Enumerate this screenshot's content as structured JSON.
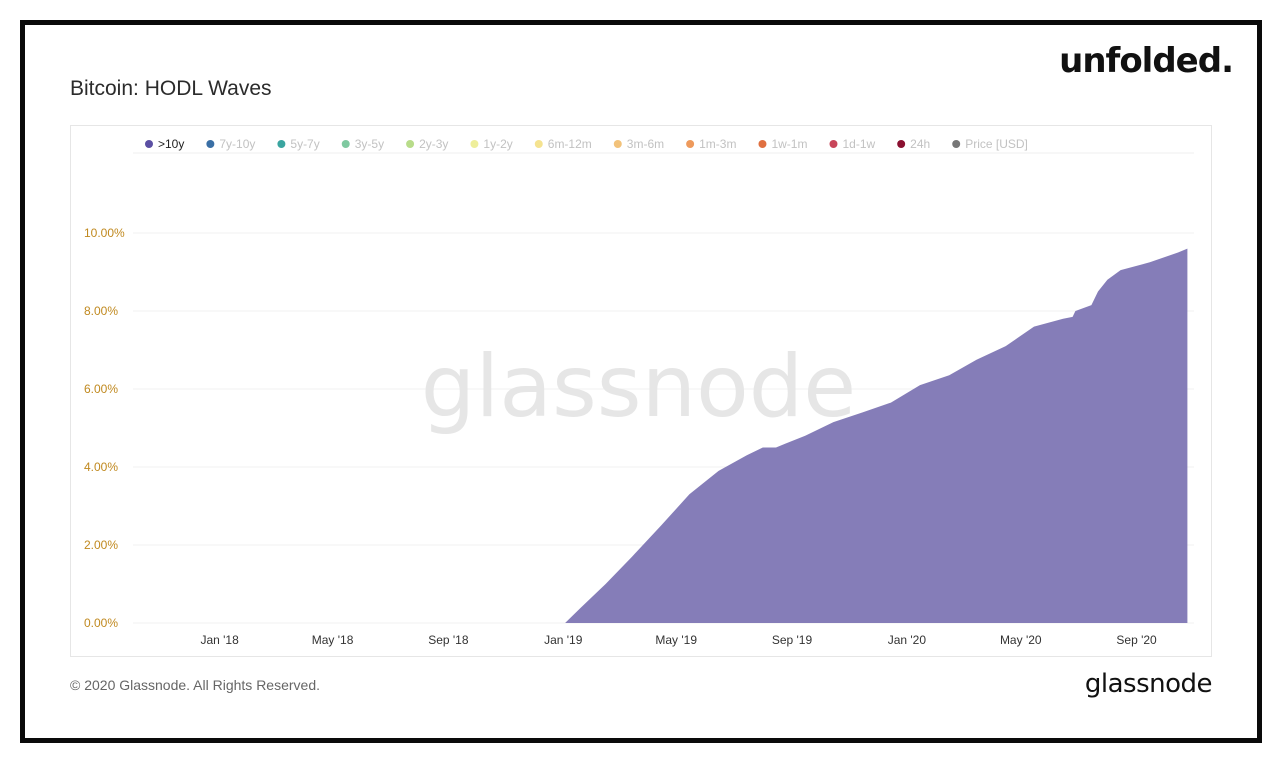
{
  "header": {
    "brand": "unfolded."
  },
  "chart_data": {
    "type": "area",
    "title": "Bitcoin: HODL Waves",
    "watermark": "glassnode",
    "legend": [
      {
        "name": ">10y",
        "color": "#5b4fa3",
        "active": true
      },
      {
        "name": "7y-10y",
        "color": "#3a6fa5",
        "active": false
      },
      {
        "name": "5y-7y",
        "color": "#3aa5a0",
        "active": false
      },
      {
        "name": "3y-5y",
        "color": "#7fc9a0",
        "active": false
      },
      {
        "name": "2y-3y",
        "color": "#b8dc8a",
        "active": false
      },
      {
        "name": "1y-2y",
        "color": "#eeee9a",
        "active": false
      },
      {
        "name": "6m-12m",
        "color": "#f5e390",
        "active": false
      },
      {
        "name": "3m-6m",
        "color": "#f2c27a",
        "active": false
      },
      {
        "name": "1m-3m",
        "color": "#ee9a5c",
        "active": false
      },
      {
        "name": "1w-1m",
        "color": "#e07040",
        "active": false
      },
      {
        "name": "1d-1w",
        "color": "#c8465a",
        "active": false
      },
      {
        "name": "24h",
        "color": "#8a1030",
        "active": false
      },
      {
        "name": "Price [USD]",
        "color": "#777777",
        "active": false
      }
    ],
    "y_ticks": [
      "0.00%",
      "2.00%",
      "4.00%",
      "6.00%",
      "8.00%",
      "10.00%"
    ],
    "ylim": [
      0,
      10
    ],
    "x_ticks": [
      {
        "label": "Jan '18",
        "date": "2018-01-01"
      },
      {
        "label": "May '18",
        "date": "2018-05-01"
      },
      {
        "label": "Sep '18",
        "date": "2018-09-01"
      },
      {
        "label": "Jan '19",
        "date": "2019-01-01"
      },
      {
        "label": "May '19",
        "date": "2019-05-01"
      },
      {
        "label": "Sep '19",
        "date": "2019-09-01"
      },
      {
        "label": "Jan '20",
        "date": "2020-01-01"
      },
      {
        "label": "May '20",
        "date": "2020-05-01"
      },
      {
        "label": "Sep '20",
        "date": "2020-09-01"
      }
    ],
    "xlim": [
      "2017-10-01",
      "2020-11-01"
    ],
    "series": [
      {
        "name": ">10y",
        "color": "#857db8",
        "points": [
          [
            "2017-10-01",
            0
          ],
          [
            "2018-06-01",
            0
          ],
          [
            "2019-01-03",
            0
          ],
          [
            "2019-01-20",
            0.4
          ],
          [
            "2019-02-15",
            1.0
          ],
          [
            "2019-03-15",
            1.7
          ],
          [
            "2019-04-15",
            2.5
          ],
          [
            "2019-05-15",
            3.3
          ],
          [
            "2019-06-15",
            3.9
          ],
          [
            "2019-07-15",
            4.3
          ],
          [
            "2019-08-01",
            4.5
          ],
          [
            "2019-08-15",
            4.5
          ],
          [
            "2019-08-25",
            4.6
          ],
          [
            "2019-09-15",
            4.8
          ],
          [
            "2019-10-15",
            5.15
          ],
          [
            "2019-11-15",
            5.4
          ],
          [
            "2019-12-15",
            5.65
          ],
          [
            "2020-01-15",
            6.1
          ],
          [
            "2020-02-15",
            6.35
          ],
          [
            "2020-03-15",
            6.75
          ],
          [
            "2020-04-15",
            7.1
          ],
          [
            "2020-05-15",
            7.6
          ],
          [
            "2020-06-15",
            7.8
          ],
          [
            "2020-06-25",
            7.85
          ],
          [
            "2020-06-28",
            8.0
          ],
          [
            "2020-07-15",
            8.15
          ],
          [
            "2020-07-22",
            8.5
          ],
          [
            "2020-08-01",
            8.8
          ],
          [
            "2020-08-15",
            9.05
          ],
          [
            "2020-09-15",
            9.25
          ],
          [
            "2020-10-15",
            9.5
          ],
          [
            "2020-10-25",
            9.6
          ]
        ]
      }
    ]
  },
  "footer": {
    "copyright": "© 2020 Glassnode. All Rights Reserved.",
    "brand": "glassnode"
  }
}
